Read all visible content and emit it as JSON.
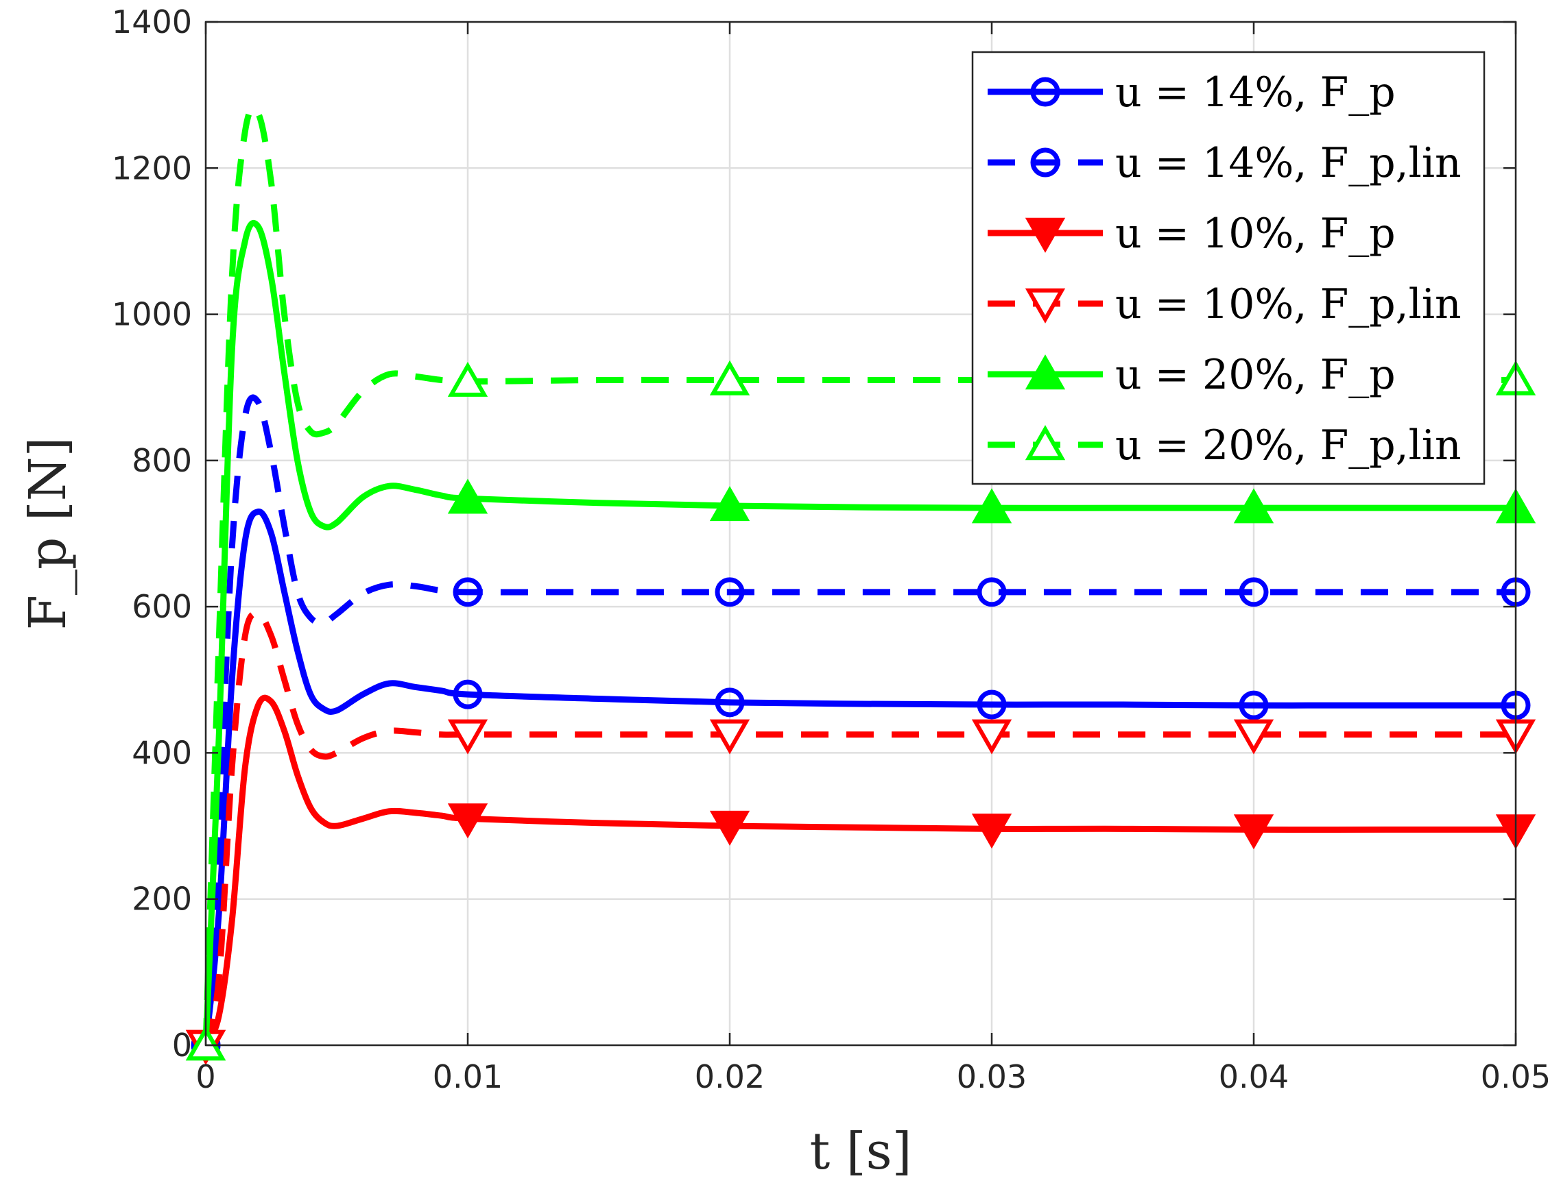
{
  "chart_data": {
    "type": "line",
    "xlabel": "t [s]",
    "ylabel": "F_p [N]",
    "xlim": [
      0,
      0.05
    ],
    "ylim": [
      0,
      1400
    ],
    "xticks": [
      0,
      0.01,
      0.02,
      0.03,
      0.04,
      0.05
    ],
    "xtick_labels": [
      "0",
      "0.01",
      "0.02",
      "0.03",
      "0.04",
      "0.05"
    ],
    "yticks": [
      0,
      200,
      400,
      600,
      800,
      1000,
      1200,
      1400
    ],
    "ytick_labels": [
      "0",
      "200",
      "400",
      "600",
      "800",
      "1000",
      "1200",
      "1400"
    ],
    "grid": true,
    "legend_position": "top-right",
    "series": [
      {
        "name": "u = 14%, F_p",
        "color": "#0000ff",
        "dash": "solid",
        "marker": "circle",
        "marker_fill": "none",
        "x": [
          0,
          0.0005,
          0.001,
          0.0015,
          0.002,
          0.0025,
          0.003,
          0.0035,
          0.004,
          0.0045,
          0.005,
          0.006,
          0.007,
          0.008,
          0.009,
          0.01,
          0.015,
          0.02,
          0.025,
          0.03,
          0.035,
          0.04,
          0.045,
          0.05
        ],
        "y": [
          0,
          180,
          500,
          690,
          730,
          700,
          620,
          540,
          480,
          460,
          458,
          480,
          495,
          490,
          485,
          480,
          474,
          469,
          467,
          466,
          466,
          465,
          465,
          465
        ],
        "marker_x": [
          0,
          0.01,
          0.02,
          0.03,
          0.04,
          0.05
        ],
        "marker_y": [
          0,
          480,
          469,
          466,
          465,
          465
        ]
      },
      {
        "name": "u = 14%, F_p,lin",
        "color": "#0000ff",
        "dash": "dashed",
        "marker": "circle",
        "marker_fill": "none",
        "x": [
          0,
          0.0005,
          0.001,
          0.0015,
          0.002,
          0.0025,
          0.003,
          0.0035,
          0.004,
          0.0045,
          0.005,
          0.006,
          0.007,
          0.008,
          0.009,
          0.01,
          0.015,
          0.02,
          0.03,
          0.04,
          0.05
        ],
        "y": [
          0,
          300,
          680,
          860,
          880,
          810,
          710,
          620,
          585,
          578,
          590,
          618,
          630,
          628,
          622,
          620,
          620,
          620,
          620,
          620,
          620
        ],
        "marker_x": [
          0,
          0.01,
          0.02,
          0.03,
          0.04,
          0.05
        ],
        "marker_y": [
          0,
          620,
          620,
          620,
          620,
          620
        ]
      },
      {
        "name": "u = 10%, F_p",
        "color": "#ff0000",
        "dash": "solid",
        "marker": "triangle-down",
        "marker_fill": "filled",
        "x": [
          0,
          0.0005,
          0.001,
          0.0015,
          0.002,
          0.0025,
          0.003,
          0.0035,
          0.004,
          0.0045,
          0.005,
          0.006,
          0.007,
          0.008,
          0.009,
          0.01,
          0.015,
          0.02,
          0.025,
          0.03,
          0.035,
          0.04,
          0.045,
          0.05
        ],
        "y": [
          0,
          40,
          170,
          380,
          465,
          470,
          430,
          370,
          325,
          305,
          300,
          310,
          320,
          318,
          314,
          310,
          304,
          300,
          298,
          296,
          296,
          295,
          295,
          295
        ],
        "marker_x": [
          0,
          0.01,
          0.02,
          0.03,
          0.04,
          0.05
        ],
        "marker_y": [
          0,
          310,
          300,
          296,
          295,
          295
        ]
      },
      {
        "name": "u = 10%, F_p,lin",
        "color": "#ff0000",
        "dash": "dashed",
        "marker": "triangle-down",
        "marker_fill": "none",
        "x": [
          0,
          0.0005,
          0.001,
          0.0015,
          0.002,
          0.0025,
          0.003,
          0.0035,
          0.004,
          0.0045,
          0.005,
          0.006,
          0.007,
          0.008,
          0.009,
          0.01,
          0.015,
          0.02,
          0.03,
          0.04,
          0.05
        ],
        "y": [
          0,
          90,
          380,
          560,
          590,
          560,
          500,
          440,
          405,
          395,
          400,
          420,
          430,
          428,
          425,
          425,
          425,
          425,
          425,
          425,
          425
        ],
        "marker_x": [
          0,
          0.01,
          0.02,
          0.03,
          0.04,
          0.05
        ],
        "marker_y": [
          0,
          425,
          425,
          425,
          425,
          425
        ]
      },
      {
        "name": "u = 20%, F_p",
        "color": "#00ff00",
        "dash": "solid",
        "marker": "triangle-up",
        "marker_fill": "filled",
        "x": [
          0,
          0.0005,
          0.001,
          0.0015,
          0.002,
          0.0025,
          0.003,
          0.0035,
          0.004,
          0.0045,
          0.005,
          0.006,
          0.007,
          0.008,
          0.009,
          0.01,
          0.015,
          0.02,
          0.025,
          0.03,
          0.035,
          0.04,
          0.045,
          0.05
        ],
        "y": [
          0,
          420,
          950,
          1100,
          1120,
          1050,
          920,
          800,
          730,
          710,
          715,
          750,
          765,
          760,
          752,
          748,
          742,
          738,
          736,
          735,
          735,
          735,
          735,
          735
        ],
        "marker_x": [
          0,
          0.01,
          0.02,
          0.03,
          0.04,
          0.05
        ],
        "marker_y": [
          0,
          748,
          738,
          735,
          735,
          735
        ]
      },
      {
        "name": "u = 20%, F_p,lin",
        "color": "#00ff00",
        "dash": "dashed",
        "marker": "triangle-up",
        "marker_fill": "none",
        "x": [
          0,
          0.0005,
          0.001,
          0.0015,
          0.002,
          0.0025,
          0.003,
          0.0035,
          0.004,
          0.0045,
          0.005,
          0.006,
          0.007,
          0.008,
          0.009,
          0.01,
          0.015,
          0.02,
          0.03,
          0.04,
          0.05
        ],
        "y": [
          0,
          550,
          1050,
          1250,
          1275,
          1180,
          1000,
          880,
          840,
          838,
          850,
          895,
          918,
          915,
          910,
          908,
          910,
          910,
          910,
          910,
          910
        ],
        "marker_x": [
          0,
          0.01,
          0.02,
          0.03,
          0.04,
          0.05
        ],
        "marker_y": [
          0,
          908,
          910,
          910,
          910,
          910
        ]
      }
    ]
  }
}
